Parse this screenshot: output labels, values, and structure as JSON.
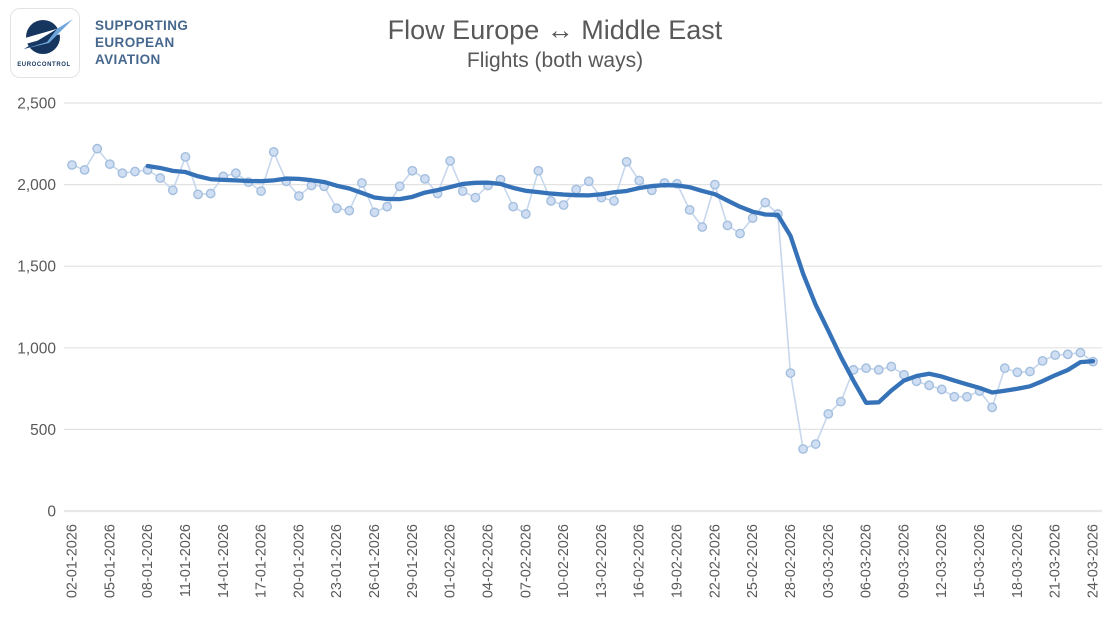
{
  "header": {
    "logo_text": "EUROCONTROL",
    "tagline": {
      "line1": "SUPPORTING",
      "line2": "EUROPEAN",
      "line3": "AVIATION"
    },
    "title": "Flow Europe ↔ Middle East",
    "subtitle": "Flights (both ways)"
  },
  "colors": {
    "title_text": "#595959",
    "axis_text": "#595959",
    "gridline": "#e2e2e2",
    "baseline": "#e9e9e9",
    "daily_line": "#c7d7ed",
    "marker_fill": "#cfdef2",
    "marker_stroke": "#a3bede",
    "avg_line": "#3572b8",
    "logo_navy": "#16365f",
    "logo_swoosh": "#6ea6dc",
    "tagline_blue": "#47688e"
  },
  "chart_data": {
    "type": "line",
    "title": "Flow Europe ↔ Middle East",
    "subtitle": "Flights (both ways)",
    "ylim": [
      0,
      2500
    ],
    "y_tick_step": 500,
    "y_tick_labels": [
      "0",
      "500",
      "1,000",
      "1,500",
      "2,000",
      "2,500"
    ],
    "x_tick_every_n_points": 3,
    "x_tick_labels": [
      "02-01-2026",
      "05-01-2026",
      "08-01-2026",
      "11-01-2026",
      "14-01-2026",
      "17-01-2026",
      "20-01-2026",
      "23-01-2026",
      "26-01-2026",
      "29-01-2026",
      "01-02-2026",
      "04-02-2026",
      "07-02-2026",
      "10-02-2026",
      "13-02-2026",
      "16-02-2026",
      "19-02-2026",
      "22-02-2026",
      "25-02-2026",
      "28-02-2026",
      "03-03-2026",
      "06-03-2026",
      "09-03-2026",
      "12-03-2026",
      "15-03-2026",
      "18-03-2026",
      "21-03-2026",
      "24-03-2026"
    ],
    "grid": "horizontal",
    "legend": "none",
    "series": [
      {
        "id": "daily",
        "style": "thin light-blue line with circle markers",
        "values": [
          2120,
          2090,
          2220,
          2125,
          2070,
          2080,
          2090,
          2040,
          1965,
          2170,
          1940,
          1945,
          2050,
          2070,
          2015,
          1960,
          2200,
          2020,
          1930,
          1995,
          1990,
          1855,
          1840,
          2010,
          1830,
          1865,
          1990,
          2085,
          2035,
          1945,
          2145,
          1960,
          1920,
          1995,
          2030,
          1865,
          1820,
          2085,
          1900,
          1875,
          1970,
          2020,
          1920,
          1900,
          2140,
          2025,
          1965,
          2010,
          2005,
          1845,
          1740,
          2000,
          1750,
          1700,
          1795,
          1890,
          1820,
          845,
          380,
          410,
          595,
          670,
          865,
          875,
          865,
          885,
          835,
          795,
          770,
          745,
          700,
          700,
          735,
          635,
          875,
          850,
          855,
          920,
          955,
          960,
          970,
          915
        ]
      },
      {
        "id": "avg_7day",
        "style": "thick dark-blue smooth line",
        "start_index": 6,
        "values": [
          2114,
          2102,
          2084,
          2077,
          2051,
          2033,
          2029,
          2026,
          2022,
          2021,
          2026,
          2037,
          2035,
          2027,
          2016,
          1993,
          1976,
          1949,
          1921,
          1912,
          1911,
          1925,
          1951,
          1966,
          1985,
          2004,
          2011,
          2012,
          2004,
          1980,
          1962,
          1954,
          1945,
          1939,
          1935,
          1934,
          1941,
          1953,
          1961,
          1979,
          1991,
          1997,
          1995,
          1984,
          1961,
          1941,
          1902,
          1864,
          1834,
          1817,
          1814,
          1686,
          1454,
          1263,
          1105,
          944,
          798,
          663,
          666,
          738,
          799,
          827,
          841,
          824,
          799,
          776,
          754,
          726,
          737,
          749,
          764,
          796,
          832,
          864,
          912,
          918
        ]
      }
    ]
  }
}
